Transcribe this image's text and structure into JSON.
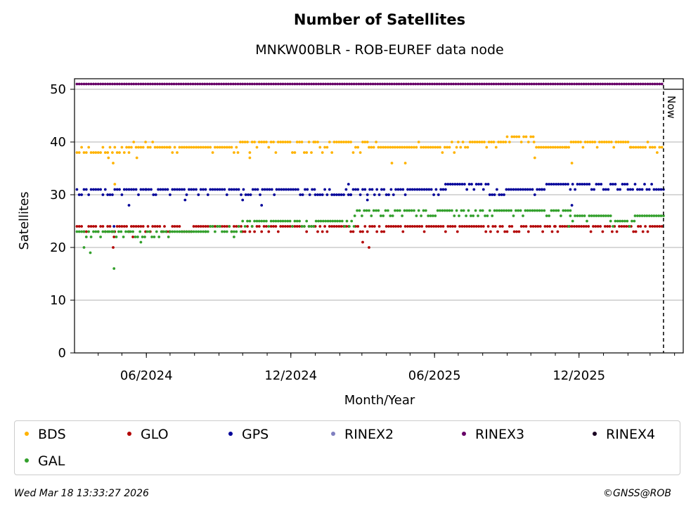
{
  "header": {
    "title": "Number of Satellites",
    "subtitle": "MNKW00BLR - ROB-EUREF data node"
  },
  "footer": {
    "timestamp": "Wed Mar 18 13:33:27 2026",
    "credit": "©GNSS@ROB"
  },
  "now_label": "Now",
  "colors": {
    "BDS": "#ffb300",
    "GLO": "#b30000",
    "GPS": "#000099",
    "RINEX2": "#8080c0",
    "RINEX3": "#660066",
    "RINEX4": "#1a0022",
    "GAL": "#33a02c"
  },
  "chart_data": {
    "type": "scatter",
    "title": "Number of Satellites",
    "subtitle": "MNKW00BLR - ROB-EUREF data node",
    "xlabel": "Month/Year",
    "ylabel": "Satellites",
    "x_type": "date",
    "xlim": [
      "2024-03-02",
      "2026-04-12"
    ],
    "ylim": [
      0,
      52
    ],
    "x_ticks": [
      {
        "date": "2024-06-01",
        "label": "06/2024"
      },
      {
        "date": "2024-12-01",
        "label": "12/2024"
      },
      {
        "date": "2025-06-01",
        "label": "06/2025"
      },
      {
        "date": "2025-12-01",
        "label": "12/2025"
      }
    ],
    "y_ticks": [
      0,
      10,
      20,
      30,
      40,
      50
    ],
    "grid": "horizontal",
    "legend_position": "bottom",
    "legend_order": [
      "BDS",
      "GLO",
      "GPS",
      "RINEX2",
      "RINEX3",
      "RINEX4",
      "GAL"
    ],
    "now_line": "2026-03-18",
    "series": [
      {
        "name": "BDS",
        "segments": [
          {
            "start": "2024-03-05",
            "end": "2024-05-10",
            "value": 38,
            "alt": [
              39
            ],
            "outliers": [
              {
                "date": "2024-04-14",
                "value": 37
              },
              {
                "date": "2024-04-20",
                "value": 36
              },
              {
                "date": "2024-04-22",
                "value": 32
              }
            ]
          },
          {
            "start": "2024-05-10",
            "end": "2024-06-30",
            "value": 39,
            "alt": [
              40
            ],
            "outliers": [
              {
                "date": "2024-05-20",
                "value": 37
              }
            ]
          },
          {
            "start": "2024-07-01",
            "end": "2024-09-25",
            "value": 39,
            "alt": [
              38,
              40
            ],
            "outliers": []
          },
          {
            "start": "2024-09-25",
            "end": "2024-12-31",
            "value": 40,
            "alt": [
              38,
              39
            ],
            "outliers": [
              {
                "date": "2024-10-10",
                "value": 37
              }
            ]
          },
          {
            "start": "2025-01-01",
            "end": "2025-03-10",
            "value": 40,
            "alt": [
              39,
              38
            ],
            "outliers": []
          },
          {
            "start": "2025-03-10",
            "end": "2025-06-30",
            "value": 39,
            "alt": [
              38,
              40
            ],
            "outliers": [
              {
                "date": "2025-04-08",
                "value": 36
              },
              {
                "date": "2025-04-25",
                "value": 36
              }
            ]
          },
          {
            "start": "2025-07-01",
            "end": "2025-08-31",
            "value": 40,
            "alt": [
              39
            ],
            "outliers": []
          },
          {
            "start": "2025-09-01",
            "end": "2025-10-05",
            "value": 41,
            "alt": [
              40
            ],
            "outliers": []
          },
          {
            "start": "2025-10-05",
            "end": "2025-11-15",
            "value": 39,
            "alt": [
              38,
              40
            ],
            "outliers": [
              {
                "date": "2025-10-06",
                "value": 37
              },
              {
                "date": "2025-11-22",
                "value": 36
              }
            ]
          },
          {
            "start": "2025-11-15",
            "end": "2026-02-05",
            "value": 40,
            "alt": [
              39
            ],
            "outliers": []
          },
          {
            "start": "2026-02-05",
            "end": "2026-03-18",
            "value": 39,
            "alt": [
              38,
              40
            ],
            "outliers": []
          }
        ]
      },
      {
        "name": "GLO",
        "segments": [
          {
            "start": "2024-03-05",
            "end": "2024-06-30",
            "value": 24,
            "alt": [
              23
            ],
            "outliers": [
              {
                "date": "2024-04-20",
                "value": 20
              },
              {
                "date": "2024-04-21",
                "value": 22
              },
              {
                "date": "2024-05-15",
                "value": 22
              }
            ]
          },
          {
            "start": "2024-07-01",
            "end": "2024-09-30",
            "value": 24,
            "alt": [
              23
            ],
            "outliers": []
          },
          {
            "start": "2024-10-01",
            "end": "2024-12-31",
            "value": 24,
            "alt": [
              23
            ],
            "outliers": []
          },
          {
            "start": "2025-01-01",
            "end": "2025-03-31",
            "value": 24,
            "alt": [
              23
            ],
            "outliers": [
              {
                "date": "2025-03-02",
                "value": 21
              },
              {
                "date": "2025-03-10",
                "value": 20
              }
            ]
          },
          {
            "start": "2025-04-01",
            "end": "2025-10-31",
            "value": 24,
            "alt": [
              23
            ],
            "outliers": []
          },
          {
            "start": "2025-11-01",
            "end": "2026-03-18",
            "value": 24,
            "alt": [
              23
            ],
            "outliers": []
          }
        ]
      },
      {
        "name": "GPS",
        "segments": [
          {
            "start": "2024-03-05",
            "end": "2024-06-01",
            "value": 31,
            "alt": [
              30
            ],
            "outliers": [
              {
                "date": "2024-05-10",
                "value": 28
              },
              {
                "date": "2024-04-21",
                "value": 24
              }
            ]
          },
          {
            "start": "2024-06-01",
            "end": "2024-12-31",
            "value": 31,
            "alt": [
              30
            ],
            "outliers": [
              {
                "date": "2024-10-01",
                "value": 29
              },
              {
                "date": "2024-10-25",
                "value": 28
              },
              {
                "date": "2024-07-20",
                "value": 29
              }
            ]
          },
          {
            "start": "2025-01-01",
            "end": "2025-02-15",
            "value": 30,
            "alt": [
              31
            ],
            "outliers": [
              {
                "date": "2025-02-12",
                "value": 32
              }
            ]
          },
          {
            "start": "2025-02-15",
            "end": "2025-06-15",
            "value": 31,
            "alt": [
              30
            ],
            "outliers": [
              {
                "date": "2025-03-08",
                "value": 29
              }
            ]
          },
          {
            "start": "2025-06-15",
            "end": "2025-08-10",
            "value": 32,
            "alt": [
              31
            ],
            "outliers": []
          },
          {
            "start": "2025-08-10",
            "end": "2025-10-15",
            "value": 31,
            "alt": [
              30
            ],
            "outliers": []
          },
          {
            "start": "2025-10-15",
            "end": "2026-02-01",
            "value": 32,
            "alt": [
              31
            ],
            "outliers": [
              {
                "date": "2025-11-22",
                "value": 28
              }
            ]
          },
          {
            "start": "2026-02-01",
            "end": "2026-03-18",
            "value": 31,
            "alt": [
              32
            ],
            "outliers": []
          }
        ]
      },
      {
        "name": "RINEX2",
        "segments": []
      },
      {
        "name": "RINEX3",
        "segments": [
          {
            "start": "2024-03-05",
            "end": "2026-03-18",
            "value": 51,
            "alt": [],
            "outliers": []
          }
        ]
      },
      {
        "name": "RINEX4",
        "segments": []
      },
      {
        "name": "GAL",
        "segments": [
          {
            "start": "2024-03-05",
            "end": "2024-04-15",
            "value": 23,
            "alt": [
              22
            ],
            "outliers": [
              {
                "date": "2024-03-14",
                "value": 20
              },
              {
                "date": "2024-03-22",
                "value": 19
              }
            ]
          },
          {
            "start": "2024-04-15",
            "end": "2024-06-30",
            "value": 23,
            "alt": [
              22
            ],
            "outliers": [
              {
                "date": "2024-04-21",
                "value": 16
              },
              {
                "date": "2024-05-25",
                "value": 21
              }
            ]
          },
          {
            "start": "2024-07-01",
            "end": "2024-08-15",
            "value": 23,
            "alt": [
              22,
              21
            ],
            "outliers": []
          },
          {
            "start": "2024-08-15",
            "end": "2024-09-30",
            "value": 23,
            "alt": [
              24
            ],
            "outliers": [
              {
                "date": "2024-09-20",
                "value": 22
              }
            ]
          },
          {
            "start": "2024-10-01",
            "end": "2025-02-20",
            "value": 25,
            "alt": [
              24
            ],
            "outliers": []
          },
          {
            "start": "2025-02-20",
            "end": "2025-07-31",
            "value": 27,
            "alt": [
              26
            ],
            "outliers": []
          },
          {
            "start": "2025-08-01",
            "end": "2025-11-20",
            "value": 27,
            "alt": [
              26
            ],
            "outliers": []
          },
          {
            "start": "2025-11-20",
            "end": "2026-01-10",
            "value": 26,
            "alt": [
              25
            ],
            "outliers": [
              {
                "date": "2025-11-18",
                "value": 24
              }
            ]
          },
          {
            "start": "2026-01-10",
            "end": "2026-02-10",
            "value": 25,
            "alt": [
              24
            ],
            "outliers": []
          },
          {
            "start": "2026-02-10",
            "end": "2026-03-18",
            "value": 26,
            "alt": [],
            "outliers": []
          }
        ]
      }
    ]
  }
}
